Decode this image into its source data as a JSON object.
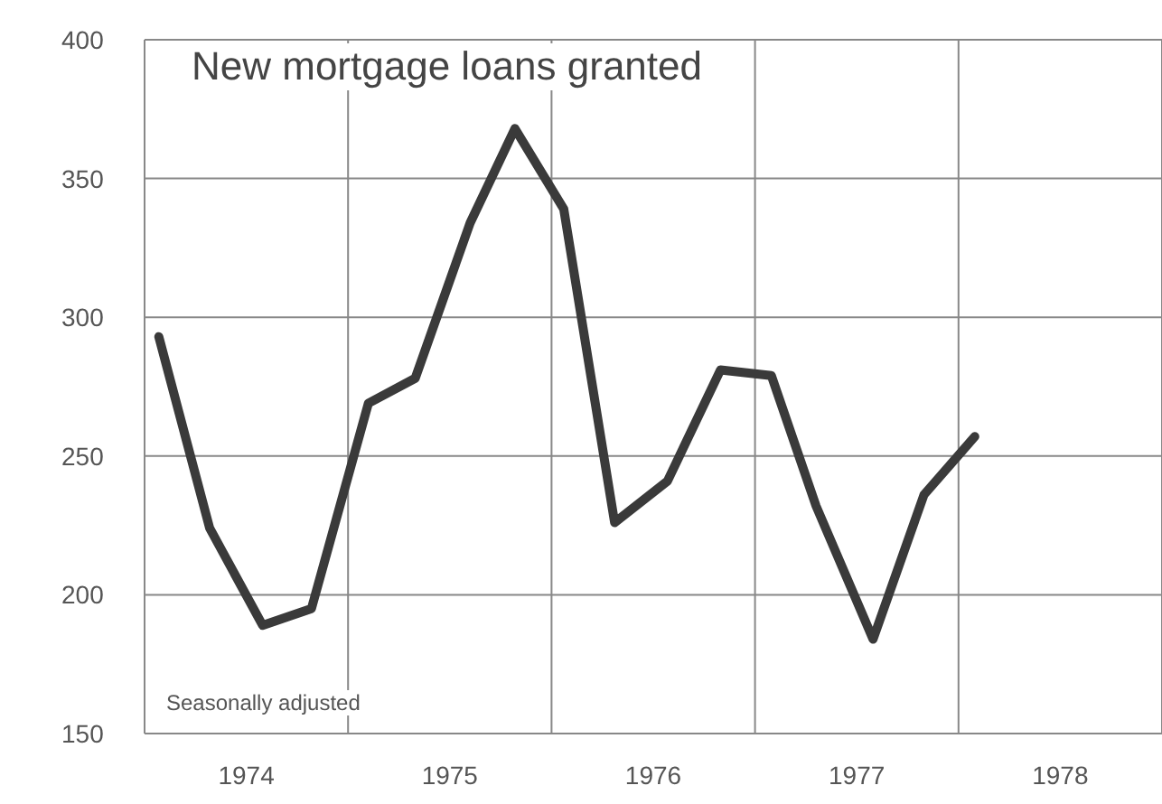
{
  "chart_data": {
    "type": "line",
    "title": "New mortgage loans granted",
    "annotations": [
      "Seasonally adjusted"
    ],
    "x": [
      1974.07,
      1974.32,
      1974.58,
      1974.82,
      1975.1,
      1975.33,
      1975.6,
      1975.82,
      1976.06,
      1976.31,
      1976.57,
      1976.83,
      1977.08,
      1977.3,
      1977.58,
      1977.83,
      1978.08
    ],
    "series": [
      {
        "color": "#3a3a3a",
        "values": [
          293,
          224,
          189,
          195,
          269,
          278,
          334,
          368,
          339,
          226,
          241,
          281,
          279,
          232,
          184,
          236,
          257
        ]
      }
    ],
    "xlim": [
      1974,
      1979
    ],
    "xticks": [
      {
        "value": 1974.5,
        "label": "1974"
      },
      {
        "value": 1975,
        "label": null
      },
      {
        "value": 1975.5,
        "label": "1975"
      },
      {
        "value": 1976,
        "label": null
      },
      {
        "value": 1976.5,
        "label": "1976"
      },
      {
        "value": 1977,
        "label": null
      },
      {
        "value": 1977.5,
        "label": "1977"
      },
      {
        "value": 1978,
        "label": null
      },
      {
        "value": 1978.5,
        "label": "1978"
      }
    ],
    "ylim": [
      150,
      400
    ],
    "yticks": [
      150,
      200,
      250,
      300,
      350,
      400
    ],
    "grid": true,
    "marker": "none",
    "line_style": "solid"
  }
}
